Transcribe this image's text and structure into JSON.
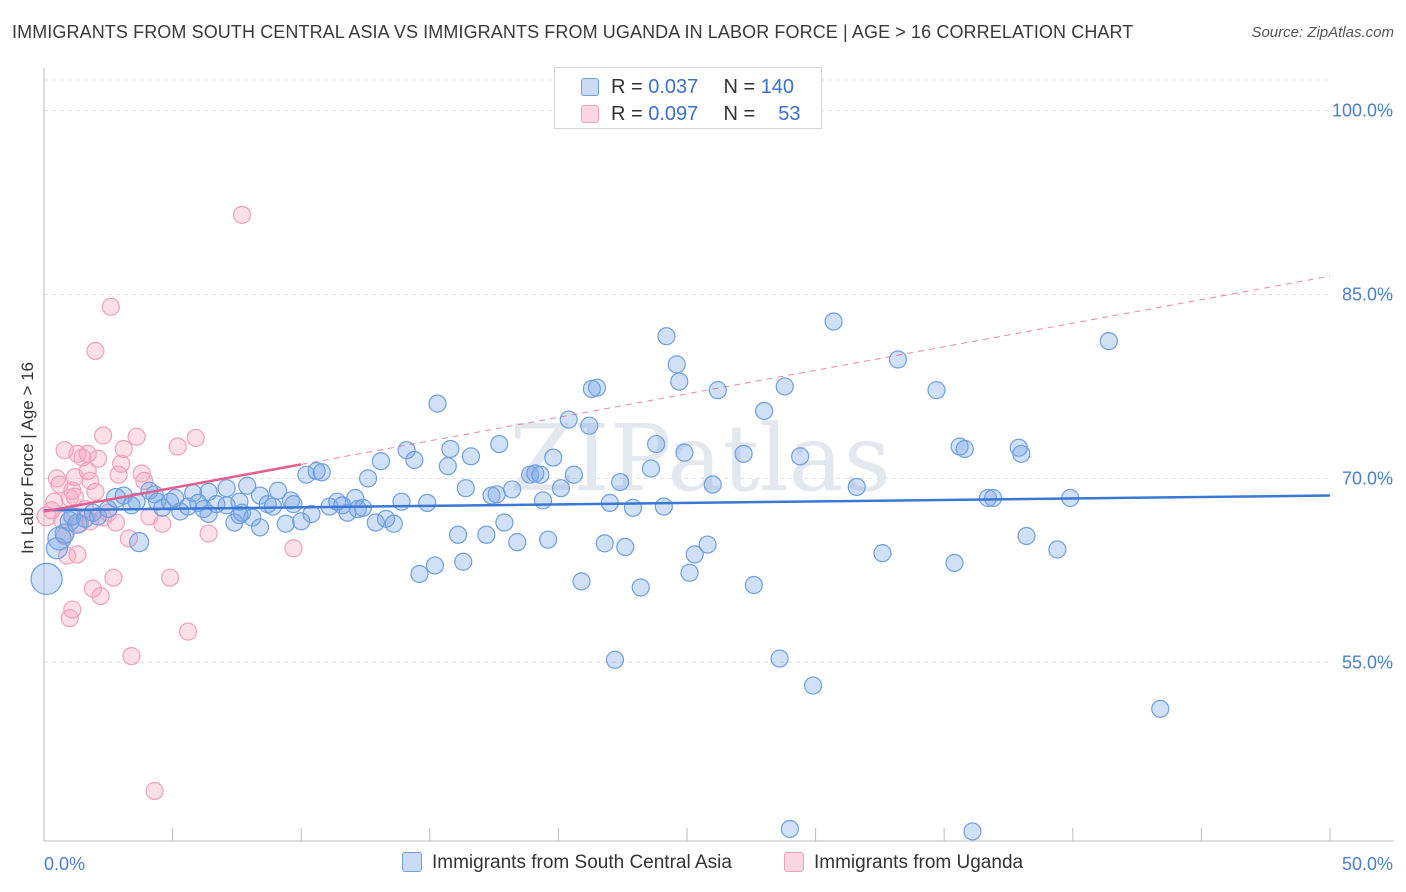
{
  "title": "IMMIGRANTS FROM SOUTH CENTRAL ASIA VS IMMIGRANTS FROM UGANDA IN LABOR FORCE | AGE > 16 CORRELATION CHART",
  "source": "Source: ZipAtlas.com",
  "watermark": "ZIPatlas",
  "legend": {
    "rows": [
      {
        "r_label": "R =",
        "r_value": "0.037",
        "n_label": "N =",
        "n_value": "140"
      },
      {
        "r_label": "R =",
        "r_value": "0.097",
        "n_label": "N =",
        "n_value": "53"
      }
    ]
  },
  "bottom_legend": [
    "Immigrants from South Central Asia",
    "Immigrants from Uganda"
  ],
  "colors": {
    "blue_fill": "rgba(120,165,230,0.35)",
    "blue_stroke": "#6f9fe0",
    "blue_line": "#3a78d4",
    "pink_fill": "rgba(245,165,190,0.35)",
    "pink_stroke": "#f0a0bc",
    "pink_line": "#e06090",
    "grid": "#dddddd",
    "tick_text": "#4a7fd0"
  },
  "chart_data": {
    "type": "scatter",
    "title": "IMMIGRANTS FROM SOUTH CENTRAL ASIA VS IMMIGRANTS FROM UGANDA IN LABOR FORCE | AGE > 16 CORRELATION CHART",
    "xlabel": "",
    "ylabel": "In Labor Force | Age > 16",
    "xlim": [
      0,
      50
    ],
    "ylim": [
      40.5,
      102.5
    ],
    "x_tick_labels": [
      "0.0%",
      "50.0%"
    ],
    "y_ticks": [
      55,
      70,
      85,
      100
    ],
    "y_tick_labels": [
      "55.0%",
      "70.0%",
      "85.0%",
      "100.0%"
    ],
    "grid": true,
    "series": [
      {
        "name": "Immigrants from South Central Asia",
        "color": "blue",
        "R": 0.037,
        "N": 140,
        "trend": {
          "x0": 0,
          "y0": 67.4,
          "x1": 50,
          "y1": 68.6,
          "dashed_from": null
        },
        "points": [
          [
            0.1,
            61.8,
            13
          ],
          [
            0.6,
            65.1,
            9
          ],
          [
            0.5,
            64.3,
            8
          ],
          [
            0.8,
            65.5,
            7
          ],
          [
            1.0,
            66.5,
            7
          ],
          [
            1.1,
            66.9,
            6
          ],
          [
            1.3,
            66.3,
            7
          ],
          [
            1.6,
            66.7,
            6
          ],
          [
            1.9,
            67.2,
            6
          ],
          [
            2.1,
            66.9,
            6
          ],
          [
            2.5,
            67.5,
            6
          ],
          [
            2.8,
            68.4,
            7
          ],
          [
            3.1,
            68.6,
            6
          ],
          [
            3.4,
            67.8,
            6
          ],
          [
            3.6,
            68.1,
            6
          ],
          [
            3.7,
            64.8,
            7
          ],
          [
            4.1,
            69.0,
            6
          ],
          [
            4.3,
            68.7,
            6
          ],
          [
            4.4,
            68.1,
            6
          ],
          [
            4.6,
            67.6,
            6
          ],
          [
            4.9,
            68.1,
            6
          ],
          [
            5.1,
            68.4,
            6
          ],
          [
            5.3,
            67.3,
            6
          ],
          [
            5.6,
            67.7,
            6
          ],
          [
            5.8,
            68.8,
            6
          ],
          [
            6.0,
            68.0,
            6
          ],
          [
            6.2,
            67.5,
            6
          ],
          [
            6.4,
            67.1,
            6
          ],
          [
            6.4,
            68.9,
            6
          ],
          [
            6.7,
            67.9,
            6
          ],
          [
            7.1,
            67.8,
            6
          ],
          [
            7.1,
            69.2,
            6
          ],
          [
            7.4,
            66.4,
            6
          ],
          [
            7.6,
            68.1,
            6
          ],
          [
            7.7,
            67.2,
            6
          ],
          [
            7.9,
            69.4,
            6
          ],
          [
            8.1,
            66.8,
            6
          ],
          [
            8.4,
            66.0,
            6
          ],
          [
            8.4,
            68.6,
            6
          ],
          [
            8.7,
            67.9,
            6
          ],
          [
            8.9,
            67.7,
            6
          ],
          [
            9.1,
            69.0,
            6
          ],
          [
            9.4,
            66.3,
            6
          ],
          [
            9.6,
            68.2,
            6
          ],
          [
            9.7,
            67.9,
            6
          ],
          [
            10.0,
            66.5,
            6
          ],
          [
            10.2,
            70.3,
            6
          ],
          [
            10.4,
            67.1,
            6
          ],
          [
            10.6,
            70.6,
            6
          ],
          [
            10.8,
            70.5,
            6
          ],
          [
            11.1,
            67.7,
            6
          ],
          [
            11.4,
            68.1,
            6
          ],
          [
            11.6,
            67.8,
            6
          ],
          [
            11.8,
            67.2,
            6
          ],
          [
            12.1,
            68.4,
            6
          ],
          [
            12.4,
            67.6,
            6
          ],
          [
            12.6,
            70.0,
            6
          ],
          [
            12.9,
            66.4,
            6
          ],
          [
            13.1,
            71.4,
            6
          ],
          [
            13.3,
            66.7,
            6
          ],
          [
            13.6,
            66.3,
            6
          ],
          [
            13.9,
            68.1,
            6
          ],
          [
            14.1,
            72.3,
            6
          ],
          [
            14.4,
            71.5,
            6
          ],
          [
            14.6,
            62.2,
            6
          ],
          [
            14.9,
            68.0,
            6
          ],
          [
            15.2,
            62.9,
            6
          ],
          [
            15.3,
            76.1,
            6
          ],
          [
            15.7,
            71.0,
            6
          ],
          [
            15.8,
            72.4,
            6
          ],
          [
            16.1,
            65.4,
            6
          ],
          [
            16.3,
            63.2,
            6
          ],
          [
            16.4,
            69.2,
            6
          ],
          [
            16.6,
            71.8,
            6
          ],
          [
            17.2,
            65.4,
            6
          ],
          [
            17.4,
            68.6,
            6
          ],
          [
            17.6,
            68.7,
            6
          ],
          [
            17.7,
            72.8,
            6
          ],
          [
            17.9,
            66.4,
            6
          ],
          [
            18.2,
            69.1,
            6
          ],
          [
            18.4,
            64.8,
            6
          ],
          [
            18.9,
            70.3,
            6
          ],
          [
            19.1,
            70.4,
            6
          ],
          [
            19.3,
            70.3,
            6
          ],
          [
            19.4,
            68.2,
            6
          ],
          [
            19.6,
            65.0,
            6
          ],
          [
            19.8,
            71.7,
            6
          ],
          [
            20.1,
            69.2,
            6
          ],
          [
            20.4,
            74.8,
            6
          ],
          [
            20.6,
            70.3,
            6
          ],
          [
            20.9,
            61.6,
            6
          ],
          [
            21.2,
            74.3,
            6
          ],
          [
            21.3,
            77.3,
            6
          ],
          [
            21.5,
            77.4,
            6
          ],
          [
            21.8,
            64.7,
            6
          ],
          [
            22.0,
            68.0,
            6
          ],
          [
            22.2,
            55.2,
            6
          ],
          [
            22.4,
            69.7,
            6
          ],
          [
            22.6,
            64.4,
            6
          ],
          [
            22.9,
            67.6,
            6
          ],
          [
            23.2,
            61.1,
            6
          ],
          [
            23.6,
            70.8,
            6
          ],
          [
            23.8,
            72.8,
            6
          ],
          [
            24.1,
            67.7,
            6
          ],
          [
            24.2,
            81.6,
            6
          ],
          [
            24.6,
            79.3,
            6
          ],
          [
            24.7,
            77.9,
            6
          ],
          [
            24.9,
            72.1,
            6
          ],
          [
            25.1,
            62.3,
            6
          ],
          [
            25.3,
            63.8,
            6
          ],
          [
            25.8,
            64.6,
            6
          ],
          [
            26.0,
            69.5,
            6
          ],
          [
            26.2,
            77.2,
            6
          ],
          [
            27.2,
            72.0,
            6
          ],
          [
            27.6,
            61.3,
            6
          ],
          [
            28.0,
            75.5,
            6
          ],
          [
            28.6,
            55.3,
            6
          ],
          [
            28.8,
            77.5,
            6
          ],
          [
            29.0,
            41.4,
            6
          ],
          [
            29.4,
            71.8,
            6
          ],
          [
            29.9,
            53.1,
            6
          ],
          [
            30.7,
            82.8,
            6
          ],
          [
            31.6,
            69.3,
            6
          ],
          [
            32.6,
            63.9,
            6
          ],
          [
            33.2,
            79.7,
            6
          ],
          [
            34.7,
            77.2,
            6
          ],
          [
            35.4,
            63.1,
            6
          ],
          [
            35.6,
            72.6,
            6
          ],
          [
            35.8,
            72.4,
            6
          ],
          [
            36.1,
            41.2,
            6
          ],
          [
            36.7,
            68.4,
            6
          ],
          [
            36.9,
            68.4,
            6
          ],
          [
            37.9,
            72.5,
            6
          ],
          [
            38.0,
            72.0,
            6
          ],
          [
            38.2,
            65.3,
            6
          ],
          [
            39.4,
            64.2,
            6
          ],
          [
            39.9,
            68.4,
            6
          ],
          [
            41.4,
            81.2,
            6
          ],
          [
            43.4,
            51.2,
            6
          ],
          [
            7.6,
            67.0,
            6
          ],
          [
            12.2,
            67.5,
            6
          ]
        ]
      },
      {
        "name": "Immigrants from Uganda",
        "color": "pink",
        "R": 0.097,
        "N": 53,
        "trend": {
          "x0": 0,
          "y0": 67.3,
          "x1": 50,
          "y1": 86.5,
          "solid_until_x": 10
        },
        "points": [
          [
            0.1,
            66.9,
            7
          ],
          [
            0.3,
            67.4,
            6
          ],
          [
            0.4,
            68.1,
            6
          ],
          [
            0.5,
            70.0,
            6
          ],
          [
            0.6,
            69.5,
            6
          ],
          [
            0.7,
            66.6,
            6
          ],
          [
            0.8,
            65.3,
            6
          ],
          [
            0.8,
            72.3,
            6
          ],
          [
            0.9,
            63.7,
            6
          ],
          [
            1.0,
            68.4,
            6
          ],
          [
            1.0,
            58.6,
            6
          ],
          [
            1.1,
            59.3,
            6
          ],
          [
            1.1,
            69.0,
            6
          ],
          [
            1.2,
            70.1,
            6
          ],
          [
            1.2,
            68.5,
            6
          ],
          [
            1.3,
            72.0,
            6
          ],
          [
            1.3,
            63.8,
            6
          ],
          [
            1.4,
            66.3,
            6
          ],
          [
            1.5,
            71.7,
            6
          ],
          [
            1.6,
            67.5,
            6
          ],
          [
            1.7,
            70.6,
            6
          ],
          [
            1.7,
            72.0,
            6
          ],
          [
            1.8,
            66.5,
            6
          ],
          [
            1.8,
            69.8,
            6
          ],
          [
            1.9,
            61.0,
            6
          ],
          [
            2.0,
            68.9,
            6
          ],
          [
            2.0,
            80.4,
            6
          ],
          [
            2.1,
            71.6,
            6
          ],
          [
            2.2,
            60.4,
            6
          ],
          [
            2.3,
            73.5,
            6
          ],
          [
            2.3,
            66.8,
            6
          ],
          [
            2.5,
            67.2,
            6
          ],
          [
            2.6,
            84.0,
            6
          ],
          [
            2.7,
            61.9,
            6
          ],
          [
            2.8,
            66.4,
            6
          ],
          [
            3.0,
            71.2,
            6
          ],
          [
            3.1,
            72.4,
            6
          ],
          [
            3.3,
            65.1,
            6
          ],
          [
            3.4,
            55.5,
            6
          ],
          [
            3.6,
            73.4,
            6
          ],
          [
            3.8,
            70.4,
            6
          ],
          [
            3.9,
            69.8,
            6
          ],
          [
            4.1,
            66.9,
            6
          ],
          [
            4.3,
            44.5,
            6
          ],
          [
            4.6,
            66.3,
            6
          ],
          [
            4.9,
            61.9,
            6
          ],
          [
            5.2,
            72.6,
            6
          ],
          [
            5.6,
            57.5,
            6
          ],
          [
            5.9,
            73.3,
            6
          ],
          [
            6.4,
            65.5,
            6
          ],
          [
            7.7,
            91.5,
            6
          ],
          [
            9.7,
            64.3,
            6
          ],
          [
            2.9,
            70.3,
            6
          ]
        ]
      }
    ]
  }
}
